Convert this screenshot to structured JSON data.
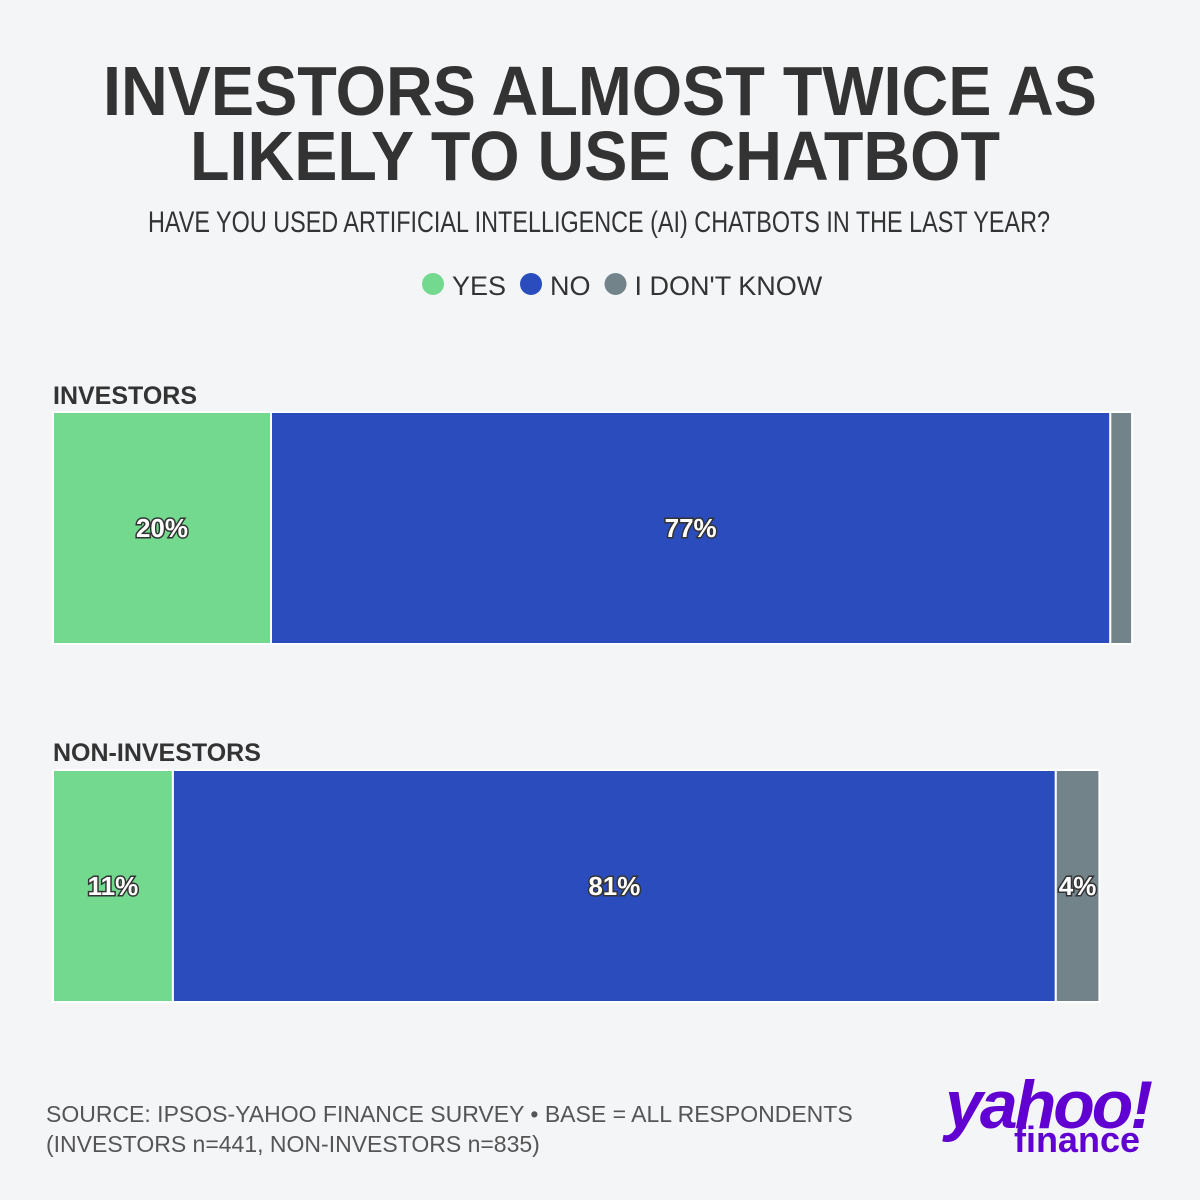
{
  "chart_data": {
    "type": "stacked-bar-horizontal",
    "title": [
      "INVESTORS ALMOST TWICE AS",
      "LIKELY TO USE CHATBOT"
    ],
    "subtitle": "HAVE YOU USED ARTIFICIAL INTELLIGENCE (AI) CHATBOTS IN THE LAST YEAR?",
    "categories": [
      "INVESTORS",
      "NON-INVESTORS"
    ],
    "series": [
      {
        "name": "YES",
        "color": "#72d98f",
        "values": [
          20,
          11
        ],
        "value_labels": [
          "20%",
          "11%"
        ]
      },
      {
        "name": "NO",
        "color": "#2b4cbd",
        "values": [
          77,
          81
        ],
        "value_labels": [
          "77%",
          "81%"
        ]
      },
      {
        "name": "I DON'T KNOW",
        "color": "#73838a",
        "values": [
          2,
          4
        ],
        "value_labels": [
          null,
          "4%"
        ]
      }
    ],
    "source": [
      "SOURCE: IPSOS-YAHOO FINANCE SURVEY • BASE = ALL RESPONDENTS",
      "(INVESTORS n=441, NON-INVESTORS n=835)"
    ],
    "logo": [
      "yahoo!",
      "finance"
    ]
  }
}
